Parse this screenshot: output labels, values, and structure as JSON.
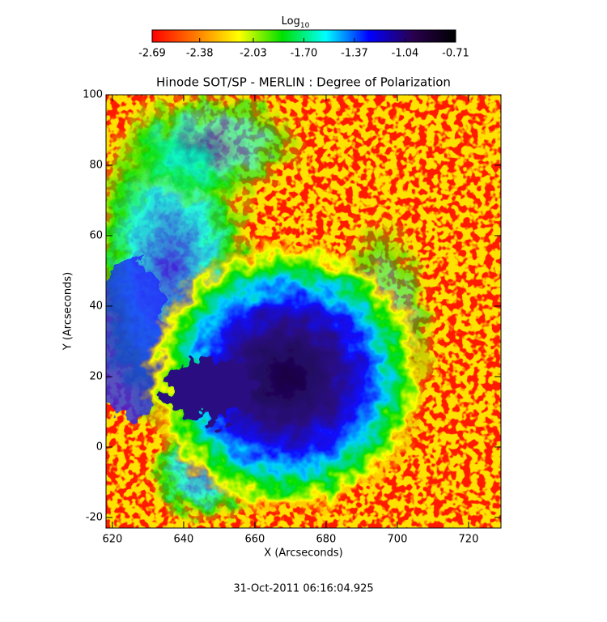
{
  "chart_data": {
    "type": "image",
    "title": "Hinode SOT/SP - MERLIN : Degree of Polarization",
    "x_label": "X (Arcseconds)",
    "y_label": "Y (Arcseconds)",
    "footer": "31-Oct-2011 06:16:04.925",
    "xlim": [
      618.2,
      729.1
    ],
    "xticks": [
      620,
      640,
      660,
      680,
      700,
      720
    ],
    "ylim": [
      -23,
      100
    ],
    "yticks": [
      -20,
      0,
      20,
      40,
      60,
      80,
      100
    ],
    "colorbar": {
      "label": "Log",
      "label_sub": "10",
      "lim": [
        -2.69,
        -0.71
      ],
      "ticks": [
        -2.69,
        -2.38,
        -2.03,
        {
          "value": -1.7,
          "label": "-1.70"
        },
        -1.37,
        -1.04,
        -0.71
      ],
      "colors": [
        "#ff0000",
        "#ff7a00",
        "#ffff00",
        "#00e000",
        "#00ffff",
        "#0000ff",
        "#2a0050",
        "#000000"
      ]
    }
  }
}
